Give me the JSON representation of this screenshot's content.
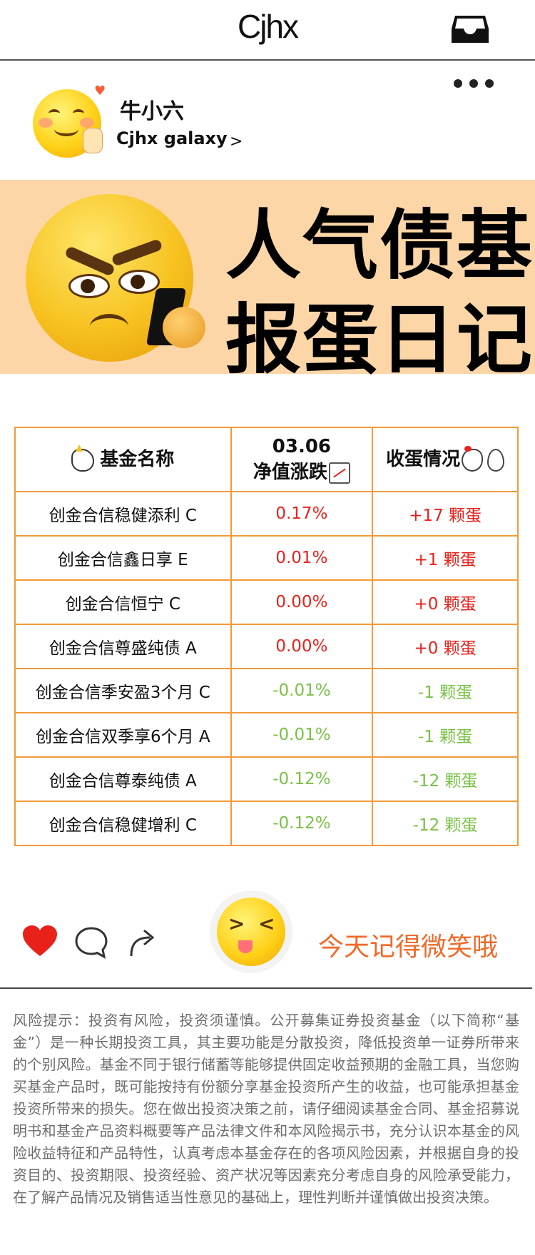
{
  "header": {
    "logo": "Cjhx"
  },
  "profile": {
    "name": "牛小六",
    "account": "Cjhx galaxy",
    "chevron": ">"
  },
  "banner": {
    "line1": "人气债基",
    "line2": "报蛋日记"
  },
  "table": {
    "col_name": "基金名称",
    "col_date": "03.06",
    "col_change": "净值涨跌",
    "col_eggs": "收蛋情况",
    "rows": [
      {
        "name": "创金合信稳健添利 C",
        "change": "0.17%",
        "eggs": "+17 颗蛋",
        "direction": "up"
      },
      {
        "name": "创金合信鑫日享 E",
        "change": "0.01%",
        "eggs": "+1 颗蛋",
        "direction": "up"
      },
      {
        "name": "创金合信恒宁 C",
        "change": "0.00%",
        "eggs": "+0 颗蛋",
        "direction": "up"
      },
      {
        "name": "创金合信尊盛纯债 A",
        "change": "0.00%",
        "eggs": "+0 颗蛋",
        "direction": "up"
      },
      {
        "name": "创金合信季安盈3个月 C",
        "change": "-0.01%",
        "eggs": "-1 颗蛋",
        "direction": "down"
      },
      {
        "name": "创金合信双季享6个月 A",
        "change": "-0.01%",
        "eggs": "-1 颗蛋",
        "direction": "down"
      },
      {
        "name": "创金合信尊泰纯债 A",
        "change": "-0.12%",
        "eggs": "-12 颗蛋",
        "direction": "down"
      },
      {
        "name": "创金合信稳健增利 C",
        "change": "-0.12%",
        "eggs": "-12 颗蛋",
        "direction": "down"
      }
    ]
  },
  "actions": {
    "smile_text": "今天记得微笑哦"
  },
  "disclaimer": "风险提示：投资有风险，投资须谨慎。公开募集证券投资基金（以下简称“基金”）是一种长期投资工具，其主要功能是分散投资，降低投资单一证券所带来的个别风险。基金不同于银行储蓄等能够提供固定收益预期的金融工具，当您购买基金产品时，既可能按持有份额分享基金投资所产生的收益，也可能承担基金投资所带来的损失。您在做出投资决策之前，请仔细阅读基金合同、基金招募说明书和基金产品资料概要等产品法律文件和本风险揭示书，充分认识本基金的风险收益特征和产品特性，认真考虑本基金存在的各项风险因素，并根据自身的投资目的、投资期限、投资经验、资产状况等因素充分考虑自身的风险承受能力，在了解产品情况及销售适当性意见的基础上，理性判断并谨慎做出投资决策。",
  "colors": {
    "up": "#e8221b",
    "down": "#79c145",
    "accent": "#f06a2a",
    "banner_bg": "#fdd6a8",
    "table_border": "#f39a3a"
  }
}
